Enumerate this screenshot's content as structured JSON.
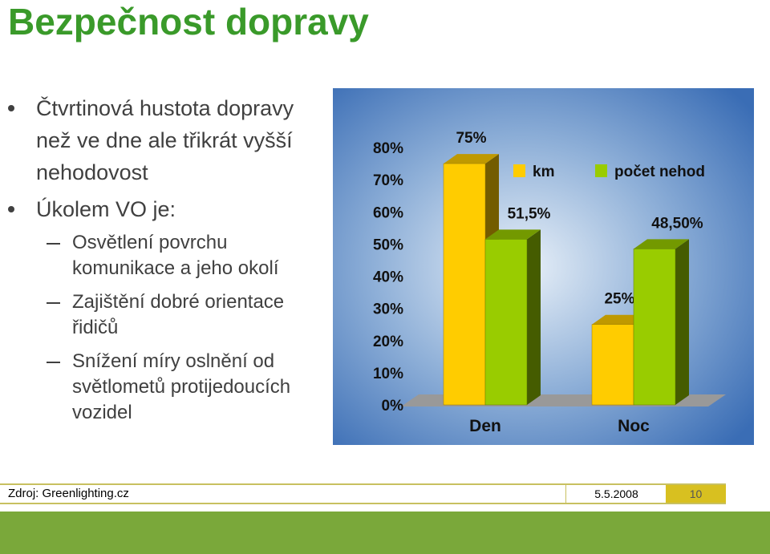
{
  "title": "Bezpečnost dopravy",
  "bullets": [
    {
      "text": "Čtvrtinová hustota dopravy než ve dne ale třikrát vyšší nehodovost"
    },
    {
      "text": "Úkolem VO je:",
      "items": [
        "Osvětlení povrchu komunikace a jeho okolí",
        "Zajištění dobré orientace řidičů",
        "Snížení míry oslnění od světlometů protijedoucích vozidel"
      ]
    }
  ],
  "footer": {
    "source": "Zdroj: Greenlighting.cz",
    "date": "5.5.2008",
    "page": 10
  },
  "chart_data": {
    "type": "bar",
    "categories": [
      "Den",
      "Noc"
    ],
    "series": [
      {
        "name": "km",
        "color": "#ffcc00",
        "values": [
          75,
          25
        ],
        "value_labels": [
          "75%",
          "25%"
        ]
      },
      {
        "name": "počet nehod",
        "color": "#99cc00",
        "values": [
          51.5,
          48.5
        ],
        "value_labels": [
          "51,5%",
          "48,50%"
        ]
      }
    ],
    "ylim": [
      0,
      80
    ],
    "yticks": [
      {
        "value": 0,
        "label": "0%"
      },
      {
        "value": 10,
        "label": "10%"
      },
      {
        "value": 20,
        "label": "20%"
      },
      {
        "value": 30,
        "label": "30%"
      },
      {
        "value": 40,
        "label": "40%"
      },
      {
        "value": 50,
        "label": "50%"
      },
      {
        "value": 60,
        "label": "60%"
      },
      {
        "value": 70,
        "label": "70%"
      },
      {
        "value": 80,
        "label": "80%"
      }
    ],
    "legend": "top-right"
  }
}
